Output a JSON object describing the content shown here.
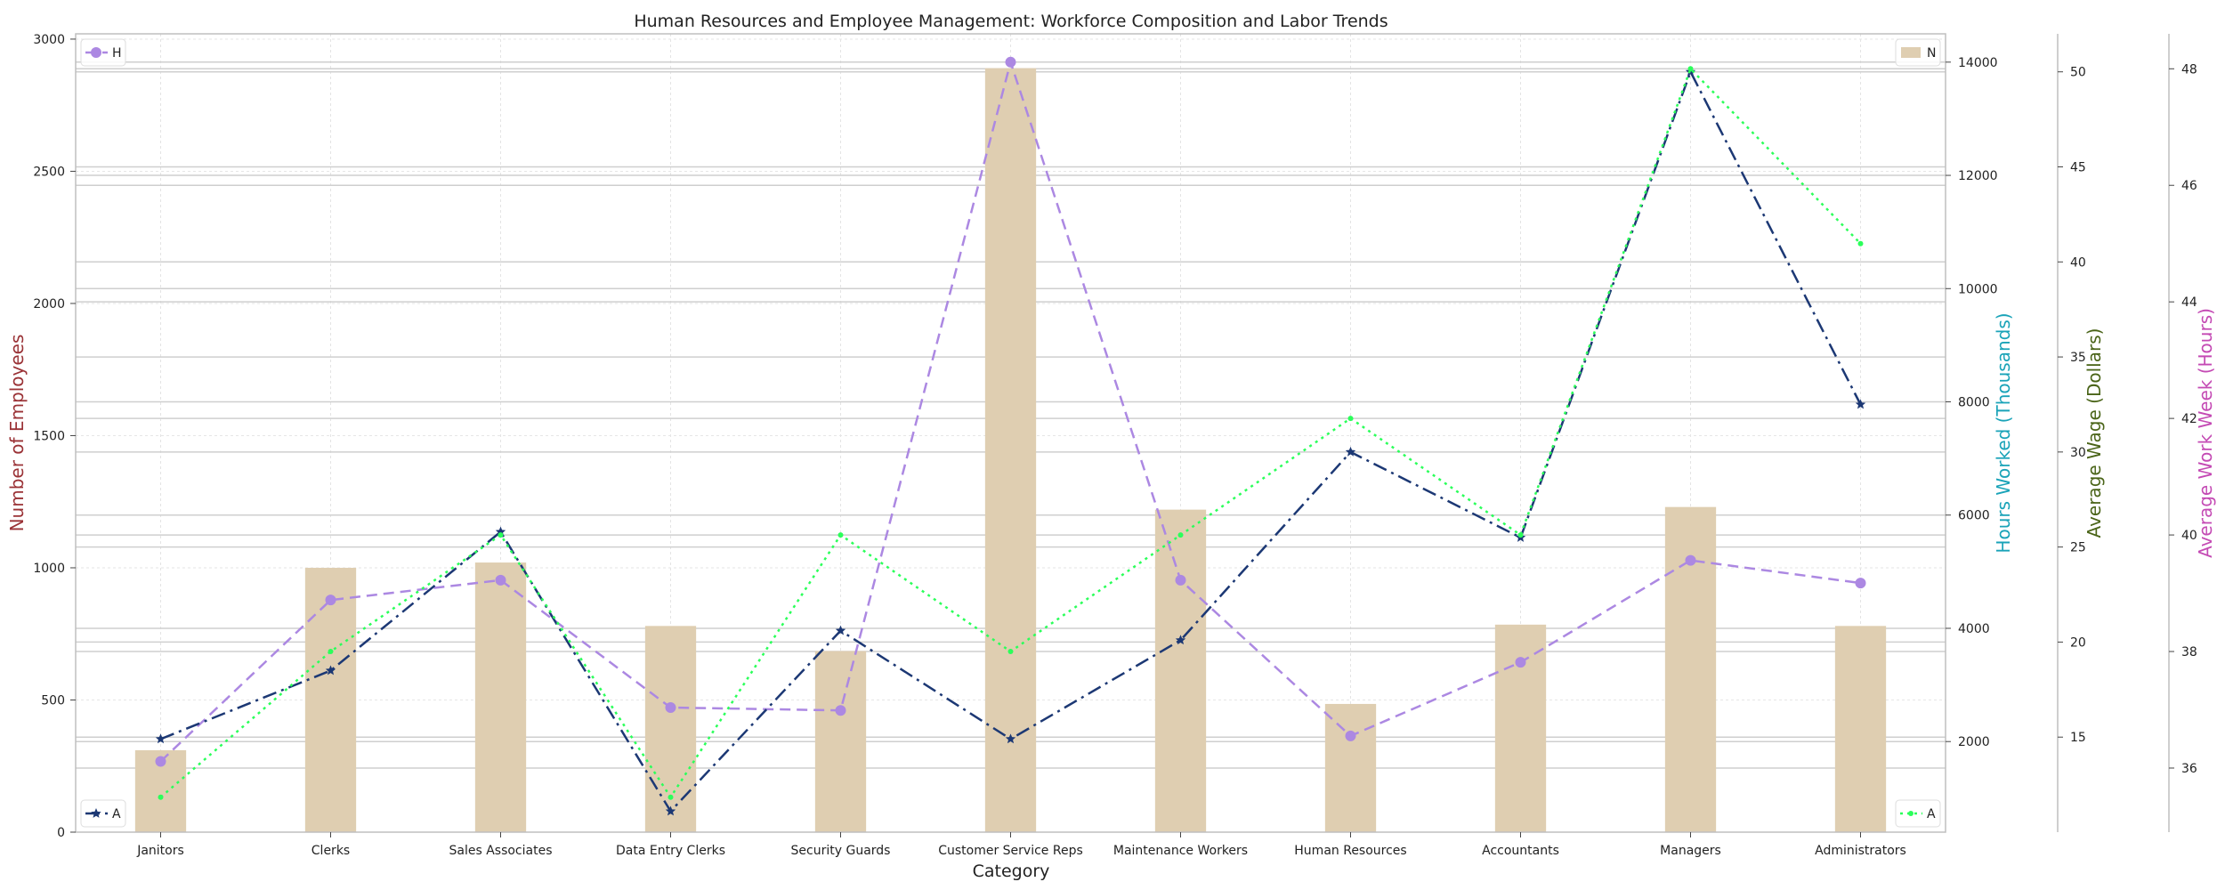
{
  "chart_data": {
    "type": "bar",
    "title": "Human Resources and Employee Management: Workforce Composition and Labor Trends",
    "xlabel": "Category",
    "categories": [
      "Janitors",
      "Clerks",
      "Sales Associates",
      "Data Entry Clerks",
      "Security Guards",
      "Customer Service Reps",
      "Maintenance Workers",
      "Human Resources",
      "Accountants",
      "Managers",
      "Administrators"
    ],
    "grid": true,
    "axes": [
      {
        "id": "employees",
        "label": "Number of Employees",
        "color": "#9a3236",
        "ylim": [
          0,
          3020
        ],
        "ticks": [
          0,
          500,
          1000,
          1500,
          2000,
          2500,
          3000
        ],
        "side": "left"
      },
      {
        "id": "hours",
        "label": "Hours Worked (Thousands)",
        "color": "#1aa3b8",
        "ylim": [
          400,
          14500
        ],
        "ticks": [
          2000,
          4000,
          6000,
          8000,
          10000,
          12000,
          14000
        ],
        "side": "right"
      },
      {
        "id": "wage",
        "label": "Average Wage (Dollars)",
        "color": "#4a6418",
        "ylim": [
          10,
          52
        ],
        "ticks": [
          15,
          20,
          25,
          30,
          35,
          40,
          45,
          50
        ],
        "side": "right"
      },
      {
        "id": "week",
        "label": "Average Work Week (Hours)",
        "color": "#c44ab4",
        "ylim": [
          34.9,
          48.6
        ],
        "ticks": [
          36,
          38,
          40,
          42,
          44,
          46,
          48
        ],
        "side": "right"
      }
    ],
    "series": [
      {
        "name": "N",
        "type": "bar",
        "axis": "employees",
        "color": "#dfceb1",
        "values": [
          310,
          1000,
          1020,
          780,
          685,
          2890,
          1220,
          485,
          785,
          1230,
          780
        ]
      },
      {
        "name": "H",
        "type": "line",
        "axis": "hours",
        "color": "#ac88e2",
        "dash": "12,7",
        "marker": "circle",
        "values": [
          1650,
          4500,
          4850,
          2600,
          2550,
          14000,
          4850,
          2100,
          3400,
          5200,
          4800
        ]
      },
      {
        "name": "A",
        "type": "line",
        "axis": "wage",
        "color": "#1c3874",
        "dash": "16,6,3,6",
        "marker": "star",
        "values": [
          14.9,
          18.5,
          25.8,
          11.1,
          20.6,
          14.9,
          20.1,
          30.0,
          25.5,
          50.0,
          32.5
        ]
      },
      {
        "name": "A",
        "type": "line",
        "axis": "week",
        "color": "#2bff5a",
        "dash": "3,5",
        "marker": "dot",
        "values": [
          35.5,
          38.0,
          40.0,
          35.5,
          40.0,
          38.0,
          40.0,
          42.0,
          40.0,
          48.0,
          45.0
        ]
      }
    ],
    "legends": [
      {
        "series": 1,
        "position": "top-left"
      },
      {
        "series": 0,
        "position": "top-right"
      },
      {
        "series": 2,
        "position": "bottom-left"
      },
      {
        "series": 3,
        "position": "bottom-right"
      }
    ]
  }
}
